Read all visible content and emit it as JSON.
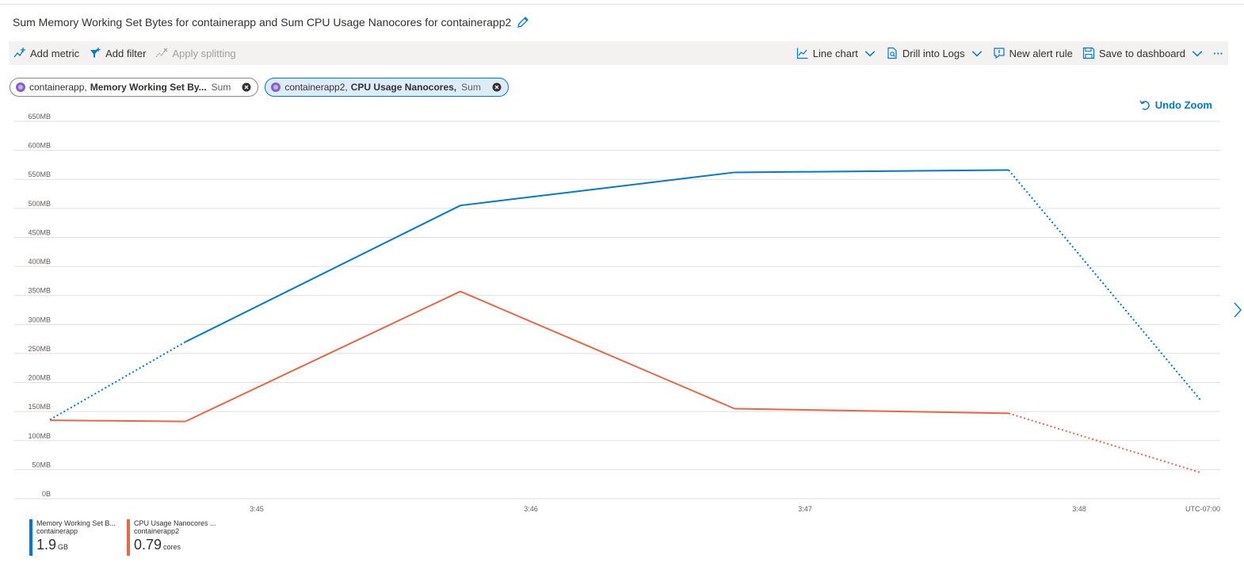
{
  "title": "Sum Memory Working Set Bytes for containerapp and Sum CPU Usage Nanocores for containerapp2",
  "toolbar": {
    "add_metric": "Add metric",
    "add_filter": "Add filter",
    "apply_splitting": "Apply splitting",
    "line_chart": "Line chart",
    "drill_into_logs": "Drill into Logs",
    "new_alert_rule": "New alert rule",
    "save_to_dashboard": "Save to dashboard",
    "more": "···"
  },
  "pills": [
    {
      "resource": "containerapp,",
      "metric": "Memory Working Set By...",
      "aggregation": "Sum"
    },
    {
      "resource": "containerapp2,",
      "metric": "CPU Usage Nanocores,",
      "aggregation": "Sum"
    }
  ],
  "undo_zoom": "Undo Zoom",
  "colors": {
    "series1": "#0078d4",
    "series2": "#e8674a",
    "grid": "#e1dfdd"
  },
  "chart_data": {
    "type": "line",
    "y_ticks": [
      "650MB",
      "600MB",
      "550MB",
      "500MB",
      "450MB",
      "400MB",
      "350MB",
      "300MB",
      "250MB",
      "200MB",
      "150MB",
      "100MB",
      "50MB",
      "0B"
    ],
    "ylim": [
      0,
      650
    ],
    "x_ticks": [
      "3:45",
      "3:46",
      "3:47",
      "3:48"
    ],
    "timezone": "UTC-07:00",
    "x": [
      0,
      1,
      2,
      3,
      4,
      5
    ],
    "series": [
      {
        "name": "Memory Working Set B...",
        "resource": "containerapp",
        "values": [
          136,
          270,
          505,
          562,
          566,
          170
        ],
        "dotted_segments": [
          0,
          4
        ]
      },
      {
        "name": "CPU Usage Nanocores ...",
        "resource": "containerapp2",
        "values": [
          135,
          133,
          357,
          155,
          147,
          45
        ],
        "dotted_segments": [
          4
        ]
      }
    ]
  },
  "legend": [
    {
      "name": "Memory Working Set B...",
      "resource": "containerapp",
      "value": "1.9",
      "unit": "GB"
    },
    {
      "name": "CPU Usage Nanocores ...",
      "resource": "containerapp2",
      "value": "0.79",
      "unit": "cores"
    }
  ]
}
